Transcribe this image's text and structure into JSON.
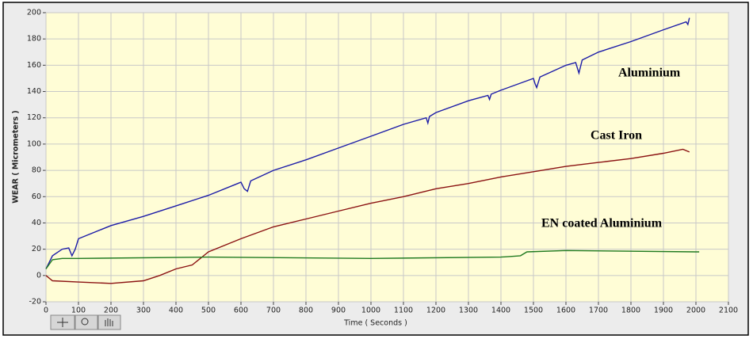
{
  "chart_data": {
    "type": "line",
    "xlabel": "Time ( Seconds )",
    "ylabel": "WEAR ( Micrometers )",
    "xlim": [
      0,
      2100
    ],
    "ylim": [
      -20,
      200
    ],
    "xticks": [
      0,
      100,
      200,
      300,
      400,
      500,
      600,
      700,
      800,
      900,
      1000,
      1100,
      1200,
      1300,
      1400,
      1500,
      1600,
      1700,
      1800,
      1900,
      2000,
      2100
    ],
    "yticks": [
      -20,
      0,
      20,
      40,
      60,
      80,
      100,
      120,
      140,
      160,
      180,
      200
    ],
    "grid": true,
    "series": [
      {
        "name": "Aluminium",
        "color": "#1c1ca8",
        "x": [
          0,
          20,
          50,
          70,
          80,
          90,
          100,
          200,
          300,
          400,
          500,
          590,
          600,
          610,
          620,
          630,
          700,
          800,
          900,
          1000,
          1100,
          1170,
          1175,
          1180,
          1200,
          1300,
          1360,
          1365,
          1370,
          1400,
          1500,
          1505,
          1510,
          1520,
          1600,
          1630,
          1640,
          1650,
          1700,
          1800,
          1900,
          1970,
          1975,
          1980
        ],
        "values": [
          5,
          15,
          20,
          21,
          15,
          20,
          28,
          38,
          45,
          53,
          61,
          70,
          71,
          66,
          64,
          72,
          80,
          88,
          97,
          106,
          115,
          120,
          116,
          121,
          124,
          133,
          137,
          134,
          138,
          141,
          150,
          146,
          143,
          151,
          160,
          162,
          154,
          164,
          170,
          178,
          187,
          193,
          191,
          196
        ]
      },
      {
        "name": "Cast Iron",
        "color": "#8b1212",
        "x": [
          0,
          20,
          100,
          200,
          300,
          350,
          400,
          450,
          500,
          600,
          700,
          800,
          900,
          1000,
          1100,
          1200,
          1300,
          1400,
          1500,
          1600,
          1700,
          1800,
          1900,
          1960,
          1980
        ],
        "values": [
          0,
          -4,
          -5,
          -6,
          -4,
          0,
          5,
          8,
          18,
          28,
          37,
          43,
          49,
          55,
          60,
          66,
          70,
          75,
          79,
          83,
          86,
          89,
          93,
          96,
          94
        ]
      },
      {
        "name": "EN coated Aluminium",
        "color": "#207a20",
        "x": [
          0,
          20,
          50,
          100,
          500,
          1000,
          1400,
          1460,
          1480,
          1600,
          2000,
          2010
        ],
        "values": [
          5,
          12,
          13,
          13,
          14,
          13,
          14,
          15,
          18,
          19,
          18,
          18
        ]
      }
    ]
  }
}
